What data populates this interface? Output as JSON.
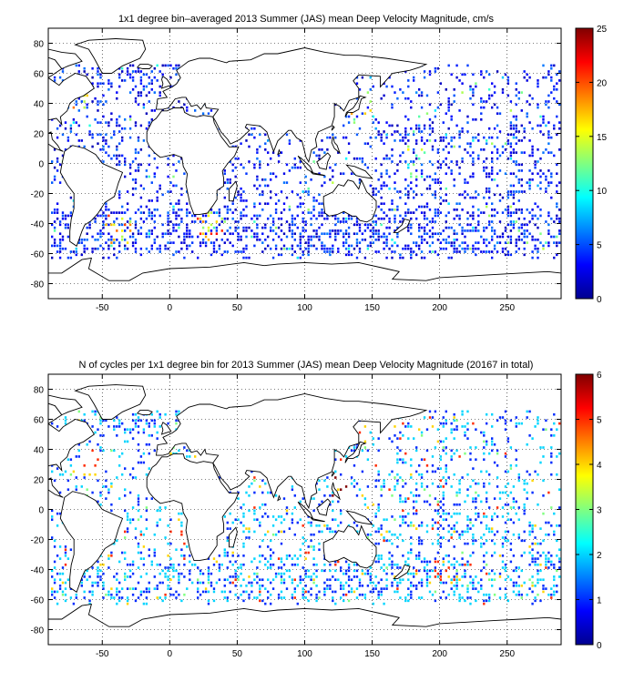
{
  "colormap": {
    "name": "jet",
    "stops": [
      "#00008f",
      "#0000ff",
      "#0080ff",
      "#00ffff",
      "#80ff80",
      "#ffff00",
      "#ff8000",
      "#ff0000",
      "#800000"
    ]
  },
  "chart_data": [
    {
      "type": "heatmap",
      "title": "1x1 degree bin–averaged 2013 Summer (JAS) mean Deep Velocity Magnitude, cm/s",
      "xlabel": "",
      "ylabel": "",
      "xlim": [
        -90,
        290
      ],
      "ylim": [
        -90,
        90
      ],
      "x_ticks": [
        "-50",
        "0",
        "50",
        "100",
        "150",
        "200",
        "250"
      ],
      "y_ticks": [
        "80",
        "60",
        "40",
        "20",
        "0",
        "-20",
        "-40",
        "-60",
        "-80"
      ],
      "grid": true,
      "colorbar": {
        "range": [
          0,
          25
        ],
        "ticks": [
          "25",
          "20",
          "15",
          "10",
          "5",
          "0"
        ]
      },
      "value_distribution": {
        "typical": [
          1,
          6
        ],
        "max": 25,
        "hotspots": [
          {
            "lon": -70,
            "lat": 38,
            "value": 20
          },
          {
            "lon": 30,
            "lat": -40,
            "value": 22
          },
          {
            "lon": 140,
            "lat": 37,
            "value": 18
          },
          {
            "lon": 180,
            "lat": 0,
            "value": 16
          },
          {
            "lon": -40,
            "lat": -45,
            "value": 21
          }
        ]
      }
    },
    {
      "type": "heatmap",
      "title": "N of cycles per 1x1 degree bin for 2013 Summer (JAS) mean Deep Velocity Magnitude (20167 in total)",
      "xlabel": "",
      "ylabel": "",
      "xlim": [
        -90,
        290
      ],
      "ylim": [
        -90,
        90
      ],
      "x_ticks": [
        "-50",
        "0",
        "50",
        "100",
        "150",
        "200",
        "250"
      ],
      "y_ticks": [
        "80",
        "60",
        "40",
        "20",
        "0",
        "-20",
        "-40",
        "-60",
        "-80"
      ],
      "grid": true,
      "colorbar": {
        "range": [
          0,
          6
        ],
        "ticks": [
          "6",
          "5",
          "4",
          "3",
          "2",
          "1",
          "0"
        ]
      },
      "total_cycles": 20167,
      "value_distribution": {
        "typical": [
          1,
          2
        ],
        "max": 6,
        "hotspots": [
          {
            "lon": 125,
            "lat": 15,
            "value": 6
          },
          {
            "lon": -60,
            "lat": 30,
            "value": 5
          },
          {
            "lon": 200,
            "lat": -40,
            "value": 5
          }
        ]
      }
    }
  ]
}
